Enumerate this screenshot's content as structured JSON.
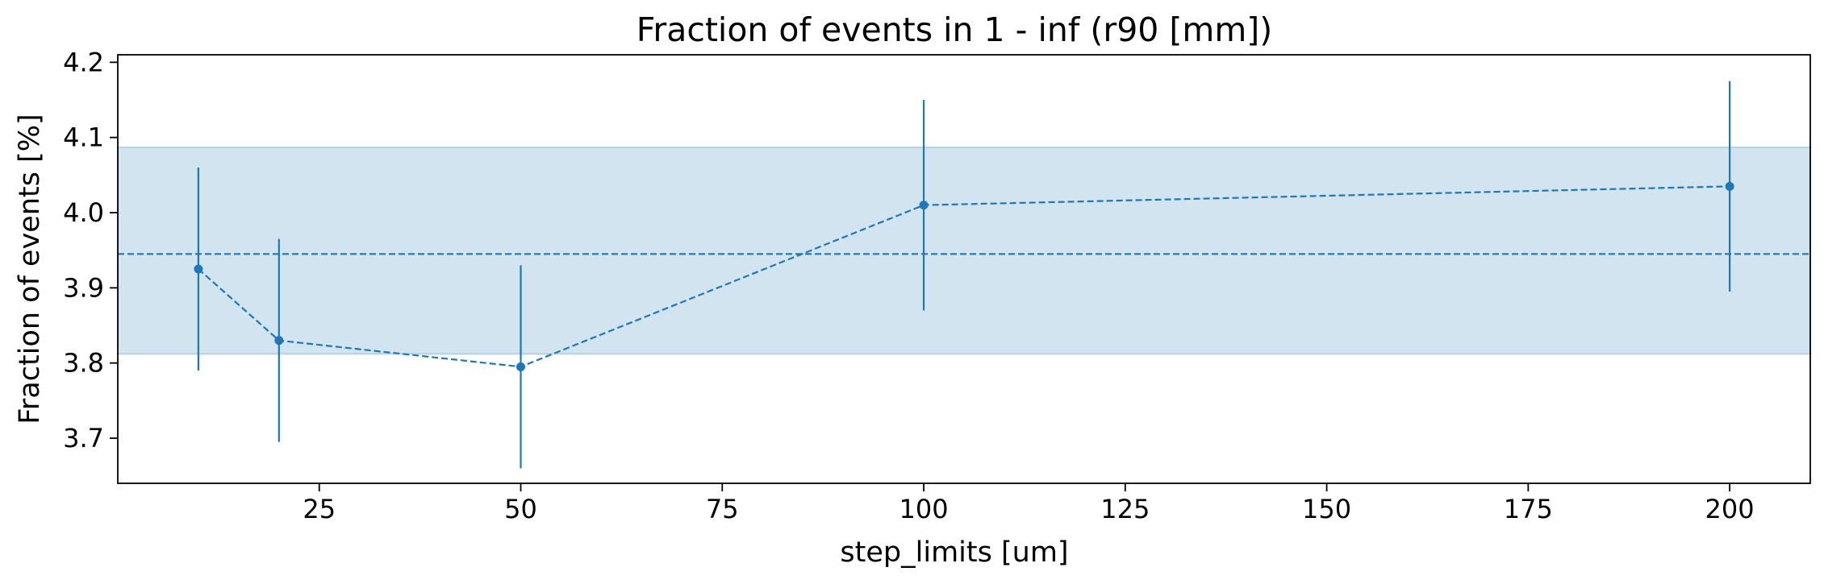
{
  "chart_data": {
    "type": "line",
    "title": "Fraction of events in 1 - inf (r90 [mm])",
    "xlabel": "step_limits [um]",
    "ylabel": "Fraction of events [%]",
    "xlim": [
      0,
      210
    ],
    "ylim": [
      3.64,
      4.21
    ],
    "xticks": [
      25,
      50,
      75,
      100,
      125,
      150,
      175,
      200
    ],
    "yticks": [
      3.7,
      3.8,
      3.9,
      4.0,
      4.1,
      4.2
    ],
    "xtick_labels": [
      "25",
      "50",
      "75",
      "100",
      "125",
      "150",
      "175",
      "200"
    ],
    "ytick_labels": [
      "3.7",
      "3.8",
      "3.9",
      "4.0",
      "4.1",
      "4.2"
    ],
    "grid": false,
    "series": [
      {
        "x": [
          10,
          20,
          50,
          100,
          200
        ],
        "y": [
          3.925,
          3.83,
          3.795,
          4.01,
          4.035
        ],
        "yerr": [
          0.135,
          0.135,
          0.135,
          0.14,
          0.14
        ],
        "linestyle": "dashed",
        "marker": "circle"
      }
    ],
    "mean_line": 3.945,
    "band": [
      3.812,
      4.087
    ],
    "colors": {
      "series": "#1f77b4",
      "band": "#1f77b4"
    }
  }
}
